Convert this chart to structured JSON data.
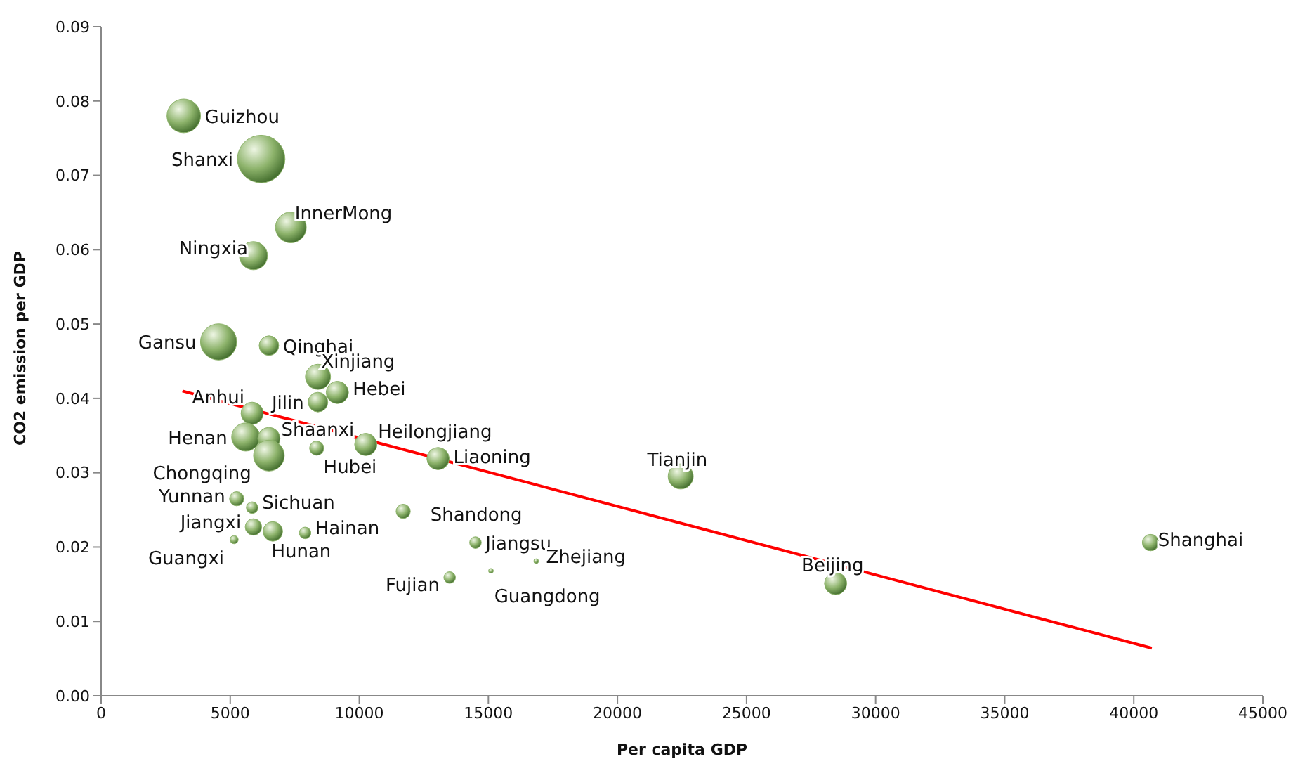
{
  "chart_data": {
    "type": "bubble",
    "xlabel": "Per capita GDP",
    "ylabel": "CO2 emission per GDP",
    "xlim": [
      0,
      45000
    ],
    "xticks": [
      0,
      5000,
      10000,
      15000,
      20000,
      25000,
      30000,
      35000,
      40000,
      45000
    ],
    "ylim": [
      0,
      0.09
    ],
    "yticks": [
      {
        "value": 0,
        "label": "0.00"
      },
      {
        "value": 0.01,
        "label": "0.01"
      },
      {
        "value": 0.02,
        "label": "0.02"
      },
      {
        "value": 0.03,
        "label": "0.03"
      },
      {
        "value": 0.04,
        "label": "0.04"
      },
      {
        "value": 0.05,
        "label": "0.05"
      },
      {
        "value": 0.06,
        "label": "0.06"
      },
      {
        "value": 0.07,
        "label": "0.07"
      },
      {
        "value": 0.08,
        "label": "0.08"
      },
      {
        "value": 0.09,
        "label": "0.09"
      }
    ],
    "grid": false,
    "legend": false,
    "series": [
      {
        "type": "bubble",
        "color": "#8db36b",
        "x": [
          3200,
          6200,
          7350,
          5900,
          4550,
          6500,
          8400,
          9150,
          8400,
          5850,
          5600,
          6500,
          6500,
          8350,
          10250,
          13050,
          5250,
          5850,
          11700,
          5900,
          6650,
          7900,
          5150,
          14500,
          13500,
          15100,
          16850,
          22450,
          28450,
          40650
        ],
        "values": [
          0.078,
          0.0722,
          0.063,
          0.0592,
          0.0476,
          0.0471,
          0.0429,
          0.0408,
          0.0395,
          0.038,
          0.0348,
          0.0346,
          0.0323,
          0.0333,
          0.0338,
          0.0319,
          0.0265,
          0.0253,
          0.0248,
          0.0227,
          0.0221,
          0.0219,
          0.021,
          0.0206,
          0.0159,
          0.0168,
          0.0181,
          0.0295,
          0.0151,
          0.0206
        ],
        "sizes": [
          0.5,
          1,
          0.42,
          0.35,
          0.58,
          0.17,
          0.28,
          0.22,
          0.17,
          0.22,
          0.35,
          0.22,
          0.42,
          0.09,
          0.22,
          0.22,
          0.09,
          0.06,
          0.09,
          0.12,
          0.17,
          0.06,
          0.03,
          0.06,
          0.06,
          0.01,
          0.01,
          0.28,
          0.22,
          0.12
        ],
        "value_labels": [
          "Guizhou",
          "Shanxi",
          "InnerMong",
          "Ningxia",
          "Gansu",
          "Qinghai",
          "Xinjiang",
          "Hebei",
          "Jilin",
          "Anhui",
          "Henan",
          "Shaanxi",
          "Chongqing",
          "Hubei",
          "Heilongjiang",
          "Liaoning",
          "Yunnan",
          "Sichuan",
          "Shandong",
          "Jiangxi",
          "Hunan",
          "Hainan",
          "Guangxi",
          "Jiangsu",
          "Fujian",
          "Guangdong",
          "Zhejiang",
          "Tianjin",
          "Beijing",
          "Shanghai"
        ]
      },
      {
        "type": "line",
        "color": "#ff0000",
        "x": [
          3150,
          40700
        ],
        "values": [
          0.041,
          0.0064
        ]
      }
    ]
  }
}
